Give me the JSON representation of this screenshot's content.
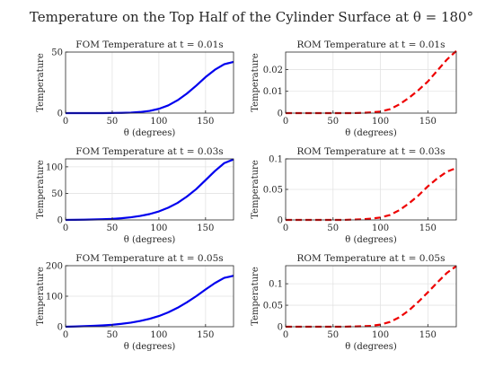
{
  "figure": {
    "title": "Temperature on the Top Half of the Cylinder Surface at θ = 180°"
  },
  "colors": {
    "fom_line": "#0000ee",
    "rom_line": "#ee0000",
    "grid": "#e3e3e3",
    "axis": "#262626"
  },
  "chart_data": [
    {
      "type": "line",
      "title": "FOM Temperature at t = 0.01s",
      "xlabel": "θ (degrees)",
      "ylabel": "Temperature",
      "xlim": [
        0,
        180
      ],
      "ylim": [
        0,
        50
      ],
      "xticks": [
        0,
        50,
        100,
        150
      ],
      "yticks": [
        0,
        50
      ],
      "line_style": "solid",
      "series": [
        {
          "x": [
            0,
            10,
            20,
            30,
            40,
            50,
            60,
            70,
            80,
            90,
            100,
            110,
            120,
            130,
            140,
            150,
            160,
            170,
            180
          ],
          "y": [
            0,
            0,
            0,
            0,
            0,
            0.1,
            0.2,
            0.4,
            0.9,
            1.8,
            3.5,
            6.3,
            10.5,
            16,
            22.5,
            29.5,
            35.5,
            40,
            42
          ]
        }
      ]
    },
    {
      "type": "line",
      "title": "ROM Temperature at t = 0.01s",
      "xlabel": "θ (degrees)",
      "ylabel": "Temperature",
      "xlim": [
        0,
        180
      ],
      "ylim": [
        0,
        0.028
      ],
      "xticks": [
        0,
        50,
        100,
        150
      ],
      "yticks": [
        0,
        0.01,
        0.02
      ],
      "line_style": "dashed",
      "series": [
        {
          "x": [
            0,
            10,
            20,
            30,
            40,
            50,
            60,
            70,
            80,
            90,
            100,
            110,
            120,
            130,
            140,
            150,
            160,
            170,
            180
          ],
          "y": [
            0,
            0,
            0,
            0,
            0,
            0,
            0,
            0,
            0.0001,
            0.0003,
            0.0007,
            0.0018,
            0.004,
            0.007,
            0.0105,
            0.0145,
            0.0195,
            0.0245,
            0.0285
          ]
        }
      ]
    },
    {
      "type": "line",
      "title": "FOM Temperature at t = 0.03s",
      "xlabel": "θ (degrees)",
      "ylabel": "Temperature",
      "xlim": [
        0,
        180
      ],
      "ylim": [
        0,
        115
      ],
      "xticks": [
        0,
        50,
        100,
        150
      ],
      "yticks": [
        0,
        50,
        100
      ],
      "line_style": "solid",
      "series": [
        {
          "x": [
            0,
            10,
            20,
            30,
            40,
            50,
            60,
            70,
            80,
            90,
            100,
            110,
            120,
            130,
            140,
            150,
            160,
            170,
            180
          ],
          "y": [
            0,
            0.2,
            0.4,
            0.8,
            1.3,
            2,
            3.2,
            5,
            7.5,
            11,
            16,
            23,
            32,
            44,
            58,
            75,
            92,
            107,
            114
          ]
        }
      ]
    },
    {
      "type": "line",
      "title": "ROM Temperature at t = 0.03s",
      "xlabel": "θ (degrees)",
      "ylabel": "Temperature",
      "xlim": [
        0,
        180
      ],
      "ylim": [
        0,
        0.1
      ],
      "xticks": [
        0,
        50,
        100,
        150
      ],
      "yticks": [
        0,
        0.05,
        0.1
      ],
      "line_style": "dashed",
      "series": [
        {
          "x": [
            0,
            10,
            20,
            30,
            40,
            50,
            60,
            70,
            80,
            90,
            100,
            110,
            120,
            130,
            140,
            150,
            160,
            170,
            180
          ],
          "y": [
            0,
            0,
            0,
            0,
            0,
            0,
            0,
            0.0005,
            0.001,
            0.002,
            0.004,
            0.008,
            0.016,
            0.027,
            0.04,
            0.055,
            0.068,
            0.079,
            0.085
          ]
        }
      ]
    },
    {
      "type": "line",
      "title": "FOM Temperature at t = 0.05s",
      "xlabel": "θ (degrees)",
      "ylabel": "Temperature",
      "xlim": [
        0,
        180
      ],
      "ylim": [
        0,
        200
      ],
      "xticks": [
        0,
        50,
        100,
        150
      ],
      "yticks": [
        0,
        100,
        200
      ],
      "line_style": "solid",
      "series": [
        {
          "x": [
            0,
            10,
            20,
            30,
            40,
            50,
            60,
            70,
            80,
            90,
            100,
            110,
            120,
            130,
            140,
            150,
            160,
            170,
            180
          ],
          "y": [
            0,
            0.8,
            1.8,
            3,
            4.5,
            6.5,
            9.5,
            13.5,
            19,
            26,
            35,
            47,
            62,
            80,
            100,
            122,
            143,
            160,
            167
          ]
        }
      ]
    },
    {
      "type": "line",
      "title": "ROM Temperature at t = 0.05s",
      "xlabel": "θ (degrees)",
      "ylabel": "Temperature",
      "xlim": [
        0,
        180
      ],
      "ylim": [
        0,
        0.142
      ],
      "xticks": [
        0,
        50,
        100,
        150
      ],
      "yticks": [
        0,
        0.05,
        0.1
      ],
      "line_style": "dashed",
      "series": [
        {
          "x": [
            0,
            10,
            20,
            30,
            40,
            50,
            60,
            70,
            80,
            90,
            100,
            110,
            120,
            130,
            140,
            150,
            160,
            170,
            180
          ],
          "y": [
            0,
            0,
            0,
            0,
            0,
            0,
            0,
            0.0005,
            0.001,
            0.002,
            0.005,
            0.011,
            0.022,
            0.038,
            0.058,
            0.08,
            0.103,
            0.125,
            0.141
          ]
        }
      ]
    }
  ]
}
